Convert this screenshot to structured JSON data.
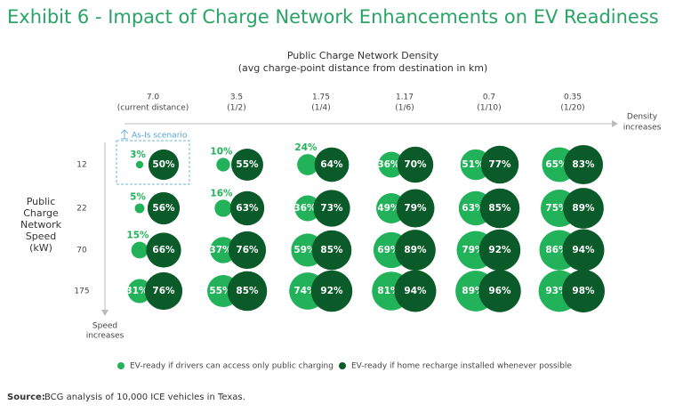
{
  "chart_data": {
    "type": "bubble-matrix",
    "title": "Exhibit 6 - Impact of Charge Network Enhancements on EV Readiness",
    "x_label": "Public Charge Network Density",
    "x_sublabel": "(avg charge-point distance from destination in km)",
    "x_annotation": [
      "Density",
      "increases"
    ],
    "y_label": [
      "Public",
      "Charge",
      "Network",
      "Speed",
      "(kW)"
    ],
    "y_annotation": [
      "Speed",
      "increases"
    ],
    "columns": [
      "7.0",
      "3.5",
      "1.75",
      "1.17",
      "0.7",
      "0.35"
    ],
    "column_notes": [
      "(current distance)",
      "(1/2)",
      "(1/4)",
      "(1/6)",
      "(1/10)",
      "(1/20)"
    ],
    "rows": [
      12,
      22,
      70,
      175
    ],
    "highlight": "As-Is scenario",
    "series": [
      {
        "name": "EV-ready if drivers can access only public charging",
        "color": "#21b25a",
        "values": [
          [
            3,
            10,
            24,
            36,
            51,
            65
          ],
          [
            5,
            16,
            36,
            49,
            63,
            75
          ],
          [
            15,
            37,
            59,
            69,
            79,
            86
          ],
          [
            31,
            55,
            74,
            81,
            89,
            93
          ]
        ],
        "value_labels": [
          [
            "3%",
            "10%",
            "24%",
            "36%",
            "51%",
            "65%"
          ],
          [
            "5%",
            "16%",
            "36%",
            "49%",
            "63%",
            "75%"
          ],
          [
            "15%",
            "37%",
            "59%",
            "69%",
            "79%",
            "86%"
          ],
          [
            "31%",
            "55%",
            "74%",
            "81%",
            "89%",
            "93%"
          ]
        ]
      },
      {
        "name": "EV-ready if home recharge installed whenever possible",
        "color": "#0b5a29",
        "values": [
          [
            50,
            55,
            64,
            70,
            77,
            83
          ],
          [
            56,
            63,
            73,
            79,
            85,
            89
          ],
          [
            66,
            76,
            85,
            89,
            92,
            94
          ],
          [
            76,
            85,
            92,
            94,
            96,
            98
          ]
        ],
        "value_labels": [
          [
            "50%",
            "55%",
            "64%",
            "70%",
            "77%",
            "83%"
          ],
          [
            "56%",
            "63%",
            "73%",
            "79%",
            "85%",
            "89%"
          ],
          [
            "66%",
            "76%",
            "85%",
            "89%",
            "92%",
            "94%"
          ],
          [
            "76%",
            "85%",
            "92%",
            "94%",
            "96%",
            "98%"
          ]
        ]
      }
    ]
  },
  "source": {
    "label": "Source:",
    "text": "BCG analysis of 10,000 ICE vehicles in Texas."
  }
}
